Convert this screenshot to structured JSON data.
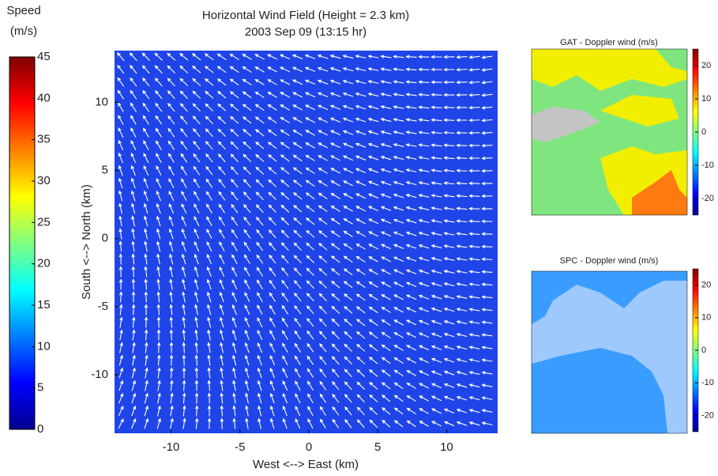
{
  "chart_data": [
    {
      "type": "quiver",
      "title": "Horizontal Wind Field (Height = 2.3 km)",
      "subtitle": "2003 Sep 09 (13:15 hr)",
      "x_label": "West <--> East (km)",
      "y_label": "South <--> North (km)",
      "xlim": [
        -14.1,
        13.7
      ],
      "xticks": [
        -10,
        -5,
        0,
        5,
        10
      ],
      "ylim": [
        -14.3,
        13.8
      ],
      "yticks": [
        -10,
        -5,
        0,
        5,
        10
      ],
      "colorbar_label": [
        "Speed",
        "(m/s)"
      ],
      "clim": [
        0,
        45
      ],
      "cticks": [
        0,
        5,
        10,
        15,
        20,
        25,
        30,
        35,
        40,
        45
      ],
      "colormap": "jet"
    },
    {
      "type": "heatmap",
      "title": "GAT - Doppler wind (m/s)",
      "clim": [
        -25,
        25
      ],
      "cticks": [
        -20,
        -10,
        0,
        10,
        20
      ],
      "colormap": "jet"
    },
    {
      "type": "heatmap",
      "title": "SPC - Doppler wind (m/s)",
      "clim": [
        -25,
        25
      ],
      "cticks": [
        -20,
        -10,
        0,
        10,
        20
      ],
      "colormap": "jet"
    }
  ]
}
